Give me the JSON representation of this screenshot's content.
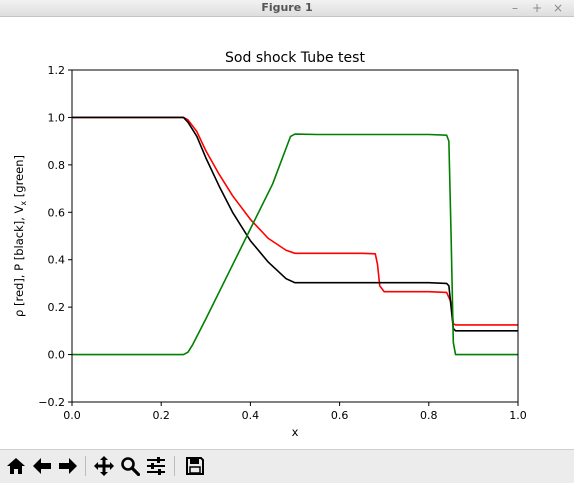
{
  "window": {
    "title": "Figure 1",
    "minimize_glyph": "–",
    "maximize_glyph": "+",
    "close_glyph": "×"
  },
  "toolbar": {
    "buttons": [
      {
        "icon": "home-icon"
      },
      {
        "icon": "back-arrow-icon"
      },
      {
        "icon": "forward-arrow-icon"
      },
      {
        "icon": "pan-icon"
      },
      {
        "icon": "zoom-icon"
      },
      {
        "icon": "subplots-config-icon"
      },
      {
        "icon": "save-icon"
      }
    ]
  },
  "chart_data": {
    "type": "line",
    "title": "Sod shock Tube test",
    "xlabel": "x",
    "ylabel": "ρ [red], P [black], V",
    "ylabel_subscript": "x",
    "ylabel_suffix": " [green]",
    "xlim": [
      0.0,
      1.0
    ],
    "ylim": [
      -0.2,
      1.2
    ],
    "x_ticks": [
      {
        "v": 0.0,
        "label": "0.0"
      },
      {
        "v": 0.2,
        "label": "0.2"
      },
      {
        "v": 0.4,
        "label": "0.4"
      },
      {
        "v": 0.6,
        "label": "0.6"
      },
      {
        "v": 0.8,
        "label": "0.8"
      },
      {
        "v": 1.0,
        "label": "1.0"
      }
    ],
    "y_ticks": [
      {
        "v": -0.2,
        "label": "−0.2"
      },
      {
        "v": 0.0,
        "label": "0.0"
      },
      {
        "v": 0.2,
        "label": "0.2"
      },
      {
        "v": 0.4,
        "label": "0.4"
      },
      {
        "v": 0.6,
        "label": "0.6"
      },
      {
        "v": 0.8,
        "label": "0.8"
      },
      {
        "v": 1.0,
        "label": "1.0"
      },
      {
        "v": 1.2,
        "label": "1.2"
      }
    ],
    "grid": false,
    "series": [
      {
        "color": "#ff0000",
        "x": [
          0.0,
          0.25,
          0.26,
          0.28,
          0.3,
          0.33,
          0.36,
          0.4,
          0.44,
          0.48,
          0.5,
          0.55,
          0.6,
          0.65,
          0.68,
          0.685,
          0.69,
          0.7,
          0.75,
          0.8,
          0.84,
          0.85,
          0.855,
          0.86,
          0.9,
          1.0
        ],
        "y": [
          1.0,
          1.0,
          0.99,
          0.94,
          0.86,
          0.76,
          0.67,
          0.57,
          0.49,
          0.44,
          0.427,
          0.427,
          0.427,
          0.427,
          0.425,
          0.38,
          0.29,
          0.265,
          0.265,
          0.265,
          0.262,
          0.22,
          0.13,
          0.125,
          0.125,
          0.125
        ]
      },
      {
        "color": "#000000",
        "x": [
          0.0,
          0.25,
          0.26,
          0.28,
          0.3,
          0.33,
          0.36,
          0.4,
          0.44,
          0.48,
          0.5,
          0.55,
          0.6,
          0.7,
          0.8,
          0.84,
          0.845,
          0.85,
          0.855,
          0.86,
          0.9,
          1.0
        ],
        "y": [
          1.0,
          1.0,
          0.98,
          0.92,
          0.83,
          0.71,
          0.6,
          0.48,
          0.39,
          0.32,
          0.303,
          0.303,
          0.303,
          0.303,
          0.303,
          0.3,
          0.29,
          0.2,
          0.11,
          0.1,
          0.1,
          0.1
        ]
      },
      {
        "color": "#008000",
        "x": [
          0.0,
          0.25,
          0.26,
          0.27,
          0.3,
          0.35,
          0.4,
          0.45,
          0.49,
          0.5,
          0.55,
          0.6,
          0.7,
          0.8,
          0.84,
          0.845,
          0.85,
          0.855,
          0.86,
          0.9,
          1.0
        ],
        "y": [
          0.0,
          0.0,
          0.01,
          0.04,
          0.15,
          0.34,
          0.53,
          0.72,
          0.92,
          0.93,
          0.928,
          0.928,
          0.928,
          0.928,
          0.925,
          0.9,
          0.5,
          0.05,
          0.0,
          0.0,
          0.0
        ]
      }
    ]
  }
}
